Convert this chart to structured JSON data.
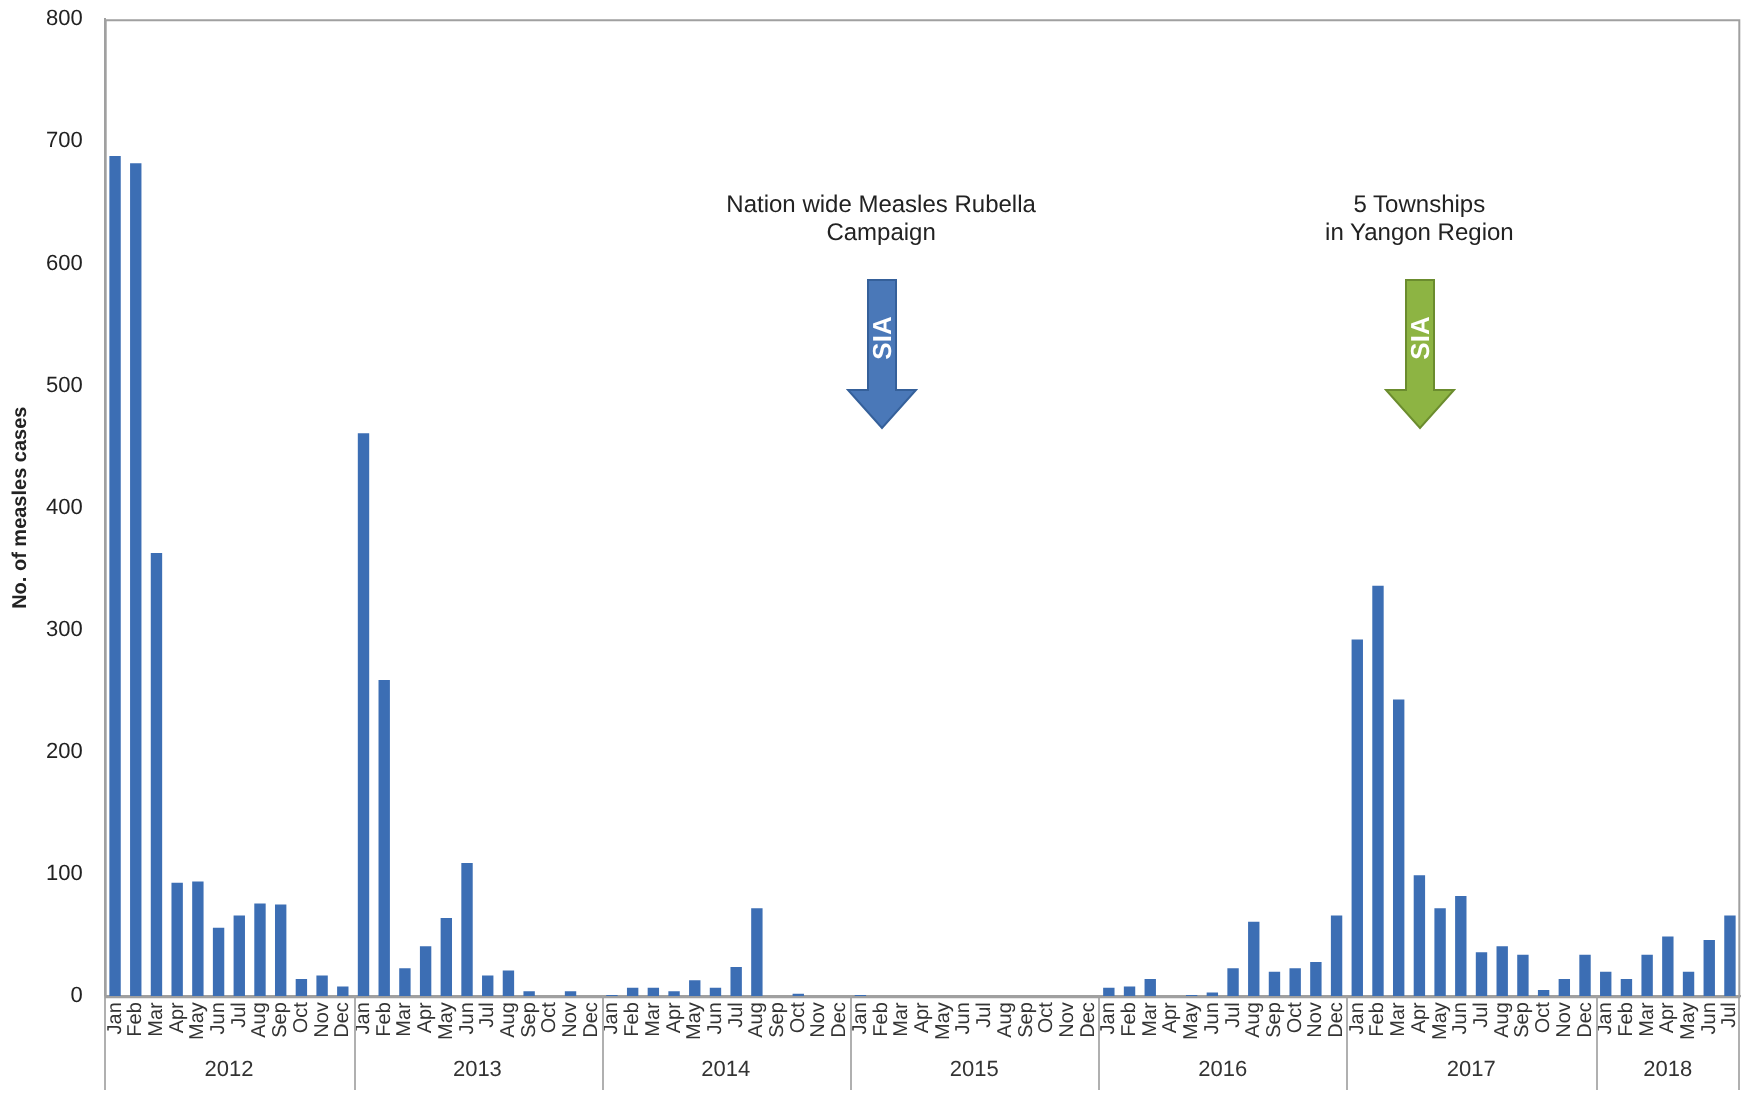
{
  "chart_data": {
    "type": "bar",
    "ylabel": "No. of measles cases",
    "categories": [
      "Jan",
      "Feb",
      "Mar",
      "Apr",
      "May",
      "Jun",
      "Jul",
      "Aug",
      "Sep",
      "Oct",
      "Nov",
      "Dec",
      "Jan",
      "Feb",
      "Mar",
      "Apr",
      "May",
      "Jun",
      "Jul",
      "Aug",
      "Sep",
      "Oct",
      "Nov",
      "Dec",
      "Jan",
      "Feb",
      "Mar",
      "Apr",
      "May",
      "Jun",
      "Jul",
      "Aug",
      "Sep",
      "Oct",
      "Nov",
      "Dec",
      "Jan",
      "Feb",
      "Mar",
      "Apr",
      "May",
      "Jun",
      "Jul",
      "Aug",
      "Sep",
      "Oct",
      "Nov",
      "Dec",
      "Jan",
      "Feb",
      "Mar",
      "Apr",
      "May",
      "Jun",
      "Jul",
      "Aug",
      "Sep",
      "Oct",
      "Nov",
      "Dec",
      "Jan",
      "Feb",
      "Mar",
      "Apr",
      "May",
      "Jun",
      "Jul",
      "Aug",
      "Sep",
      "Oct",
      "Nov",
      "Dec",
      "Jan",
      "Feb",
      "Mar",
      "Apr",
      "May",
      "Jun",
      "Jul"
    ],
    "values": [
      688,
      682,
      363,
      93,
      94,
      56,
      66,
      76,
      75,
      14,
      17,
      8,
      461,
      259,
      23,
      41,
      64,
      109,
      17,
      21,
      4,
      0,
      4,
      0,
      1,
      7,
      7,
      4,
      13,
      7,
      24,
      72,
      0,
      2,
      0,
      0,
      1,
      0,
      0,
      0,
      0,
      0,
      0,
      0,
      0,
      0,
      0,
      0,
      7,
      8,
      14,
      0,
      1,
      3,
      23,
      61,
      20,
      23,
      28,
      66,
      292,
      336,
      243,
      99,
      72,
      82,
      36,
      41,
      34,
      5,
      14,
      34,
      20,
      14,
      34,
      49,
      20,
      46,
      66
    ],
    "color": "#3c6eb4",
    "ylim": [
      0,
      800
    ],
    "yticks": [
      0,
      100,
      200,
      300,
      400,
      500,
      600,
      700,
      800
    ],
    "grid": false,
    "legend": false,
    "annotations": [
      "Nation wide Measles Rubella\nCampaign",
      "SIA",
      "5 Townships\nin Yangon Region",
      "SIA",
      "2012",
      "2013",
      "2014",
      "2015",
      "2016",
      "2017",
      "2018"
    ]
  }
}
